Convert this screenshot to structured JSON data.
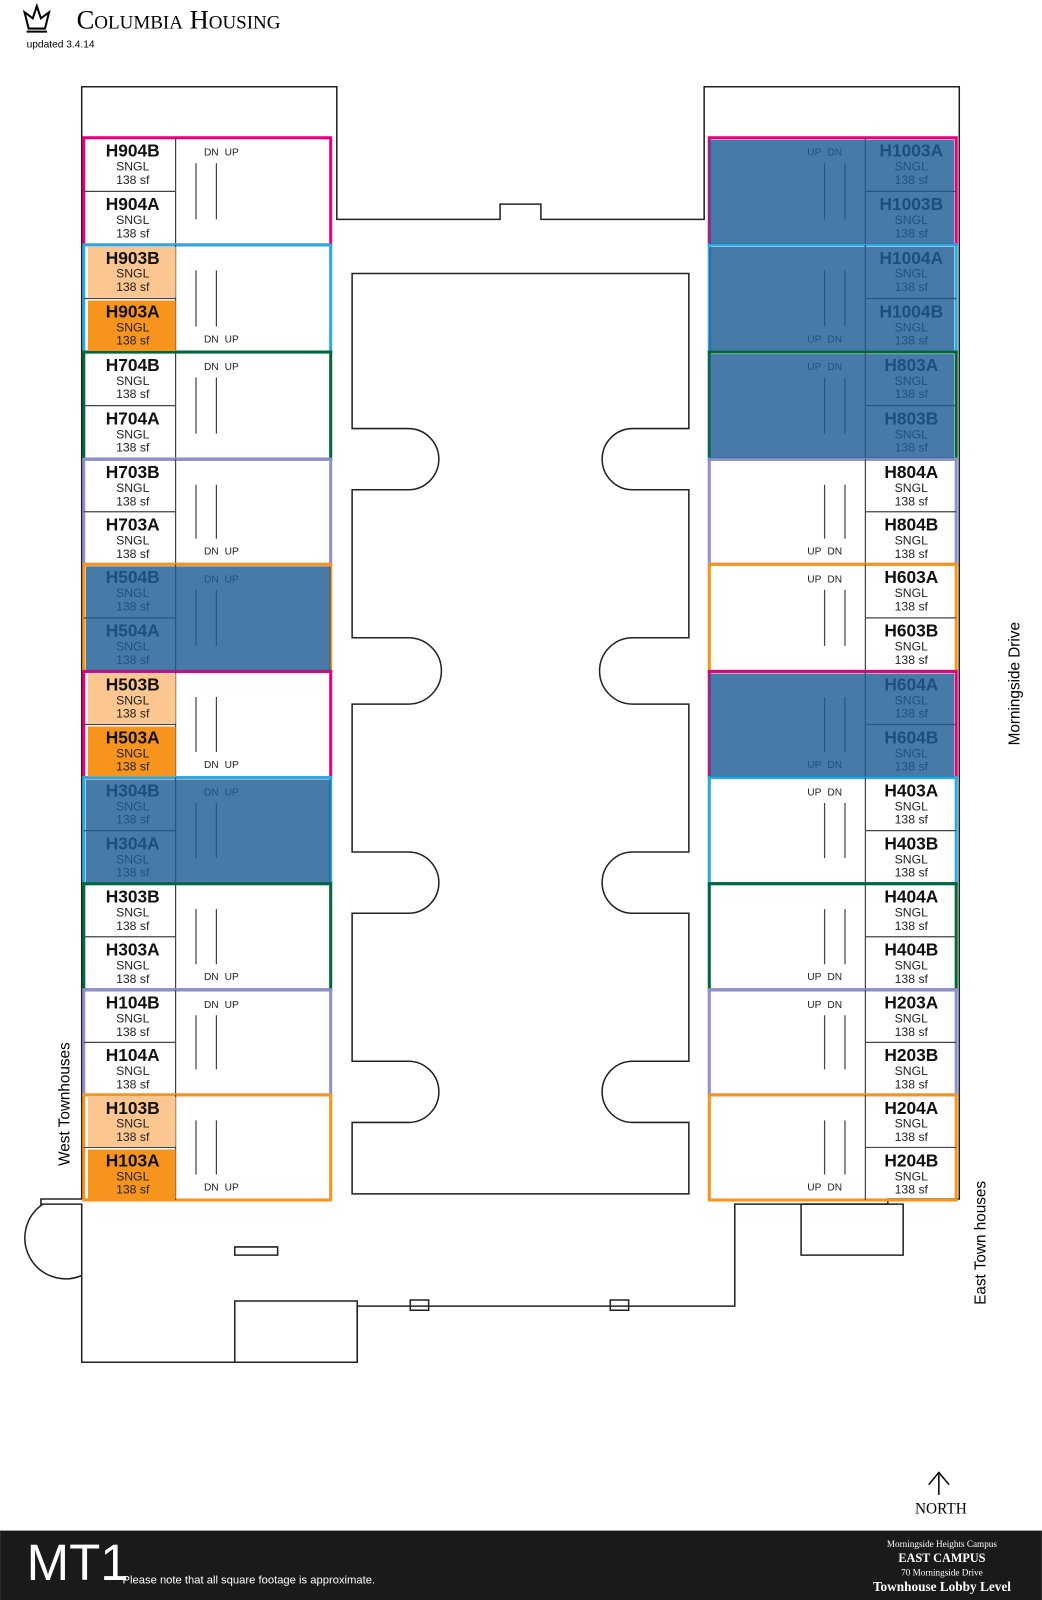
{
  "header": {
    "title": "Columbia Housing",
    "updated": "updated 3.4.14"
  },
  "rooms": [
    {
      "label": "H904B",
      "type": "SNGL",
      "area": "138 sf"
    },
    {
      "label": "H904A",
      "type": "SNGL",
      "area": "138 sf"
    },
    {
      "label": "H903B",
      "type": "SNGL",
      "area": "138 sf"
    },
    {
      "label": "H903A",
      "type": "SNGL",
      "area": "138 sf"
    },
    {
      "label": "H704B",
      "type": "SNGL",
      "area": "138 sf"
    },
    {
      "label": "H704A",
      "type": "SNGL",
      "area": "138 sf"
    },
    {
      "label": "H703B",
      "type": "SNGL",
      "area": "138 sf"
    },
    {
      "label": "H703A",
      "type": "SNGL",
      "area": "138 sf"
    },
    {
      "label": "H504B",
      "type": "SNGL",
      "area": "138 sf"
    },
    {
      "label": "H504A",
      "type": "SNGL",
      "area": "138 sf"
    },
    {
      "label": "H503B",
      "type": "SNGL",
      "area": "138 sf"
    },
    {
      "label": "H503A",
      "type": "SNGL",
      "area": "138 sf"
    },
    {
      "label": "H304B",
      "type": "SNGL",
      "area": "138 sf"
    },
    {
      "label": "H304A",
      "type": "SNGL",
      "area": "138 sf"
    },
    {
      "label": "H303B",
      "type": "SNGL",
      "area": "138 sf"
    },
    {
      "label": "H303A",
      "type": "SNGL",
      "area": "138 sf"
    },
    {
      "label": "H104B",
      "type": "SNGL",
      "area": "138 sf"
    },
    {
      "label": "H104A",
      "type": "SNGL",
      "area": "138 sf"
    },
    {
      "label": "H103B",
      "type": "SNGL",
      "area": "138 sf"
    },
    {
      "label": "H103A",
      "type": "SNGL",
      "area": "138 sf"
    },
    {
      "label": "H1003A",
      "type": "SNGL",
      "area": "138 sf"
    },
    {
      "label": "H1003B",
      "type": "SNGL",
      "area": "138 sf"
    },
    {
      "label": "H1004A",
      "type": "SNGL",
      "area": "138 sf"
    },
    {
      "label": "H1004B",
      "type": "SNGL",
      "area": "138 sf"
    },
    {
      "label": "H803A",
      "type": "SNGL",
      "area": "138 sf"
    },
    {
      "label": "H803B",
      "type": "SNGL",
      "area": "138 sf"
    },
    {
      "label": "H804A",
      "type": "SNGL",
      "area": "138 sf"
    },
    {
      "label": "H804B",
      "type": "SNGL",
      "area": "138 sf"
    },
    {
      "label": "H603A",
      "type": "SNGL",
      "area": "138 sf"
    },
    {
      "label": "H603B",
      "type": "SNGL",
      "area": "138 sf"
    },
    {
      "label": "H604A",
      "type": "SNGL",
      "area": "138 sf"
    },
    {
      "label": "H604B",
      "type": "SNGL",
      "area": "138 sf"
    },
    {
      "label": "H403A",
      "type": "SNGL",
      "area": "138 sf"
    },
    {
      "label": "H403B",
      "type": "SNGL",
      "area": "138 sf"
    },
    {
      "label": "H404A",
      "type": "SNGL",
      "area": "138 sf"
    },
    {
      "label": "H404B",
      "type": "SNGL",
      "area": "138 sf"
    },
    {
      "label": "H203A",
      "type": "SNGL",
      "area": "138 sf"
    },
    {
      "label": "H203B",
      "type": "SNGL",
      "area": "138 sf"
    },
    {
      "label": "H204A",
      "type": "SNGL",
      "area": "138 sf"
    },
    {
      "label": "H204B",
      "type": "SNGL",
      "area": "138 sf"
    }
  ],
  "stairs": [
    "DN",
    "UP"
  ],
  "streets": {
    "east": "Morningside Drive",
    "west": "West Townhouses",
    "south": "East Town houses"
  },
  "north": "NORTH",
  "footer": {
    "code": "MT1",
    "note": "Please note that all square footage is approximate.",
    "campus": "Morningside Heights Campus",
    "area": "EAST CAMPUS",
    "address": "70 Morningside Drive",
    "level": "Townhouse Lobby Level"
  }
}
